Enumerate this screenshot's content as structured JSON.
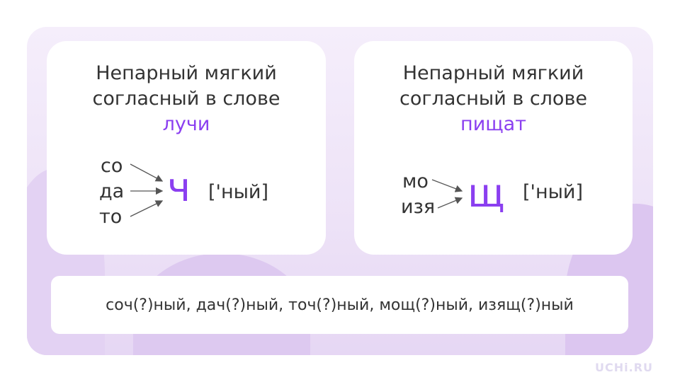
{
  "cards": [
    {
      "title_line1": "Непарный мягкий",
      "title_line2": "согласный в слове",
      "word": "лучи",
      "syllables": [
        "со",
        "да",
        "то"
      ],
      "letter": "ч",
      "transcription": "['ный]"
    },
    {
      "title_line1": "Непарный мягкий",
      "title_line2": "согласный в слове",
      "word": "пищат",
      "syllables": [
        "мо",
        "изя"
      ],
      "letter": "щ",
      "transcription": "['ный]"
    }
  ],
  "exercise": "соч(?)ный, дач(?)ный, точ(?)ный, мощ(?)ный, изящ(?)ный",
  "logo": "UCHi.RU",
  "colors": {
    "accent": "#8b3ff0",
    "background": "#ede2f7"
  }
}
